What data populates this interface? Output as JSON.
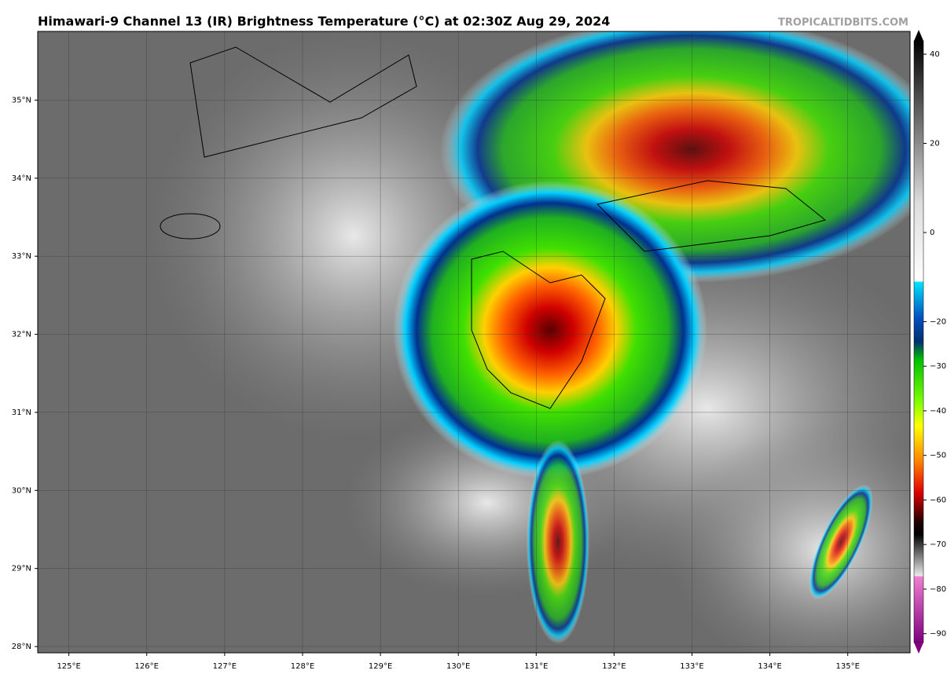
{
  "header": {
    "title": "Himawari-9 Channel 13 (IR) Brightness Temperature (°C) at 02:30Z Aug 29, 2024",
    "credit": "TROPICALTIDBITS.COM"
  },
  "map": {
    "xlim": [
      124.6,
      135.8
    ],
    "ylim": [
      27.92,
      35.88
    ],
    "xticks": [
      {
        "value": 125,
        "label": "125°E"
      },
      {
        "value": 126,
        "label": "126°E"
      },
      {
        "value": 127,
        "label": "127°E"
      },
      {
        "value": 128,
        "label": "128°E"
      },
      {
        "value": 129,
        "label": "129°E"
      },
      {
        "value": 130,
        "label": "130°E"
      },
      {
        "value": 131,
        "label": "131°E"
      },
      {
        "value": 132,
        "label": "132°E"
      },
      {
        "value": 133,
        "label": "133°E"
      },
      {
        "value": 134,
        "label": "134°E"
      },
      {
        "value": 135,
        "label": "135°E"
      }
    ],
    "yticks": [
      {
        "value": 28,
        "label": "28°N"
      },
      {
        "value": 29,
        "label": "29°N"
      },
      {
        "value": 30,
        "label": "30°N"
      },
      {
        "value": 31,
        "label": "31°N"
      },
      {
        "value": 32,
        "label": "32°N"
      },
      {
        "value": 33,
        "label": "33°N"
      },
      {
        "value": 34,
        "label": "34°N"
      },
      {
        "value": 35,
        "label": "35°N"
      }
    ]
  },
  "colorbar": {
    "lim": [
      -92,
      43
    ],
    "ticks": [
      40,
      20,
      0,
      {
        "value": -20,
        "label": "−20"
      },
      {
        "value": -30,
        "label": "−30"
      },
      {
        "value": -40,
        "label": "−40"
      },
      {
        "value": -50,
        "label": "−50"
      },
      {
        "value": -60,
        "label": "−60"
      },
      {
        "value": -70,
        "label": "−70"
      },
      {
        "value": -80,
        "label": "−80"
      },
      {
        "value": -90,
        "label": "−90"
      }
    ]
  }
}
